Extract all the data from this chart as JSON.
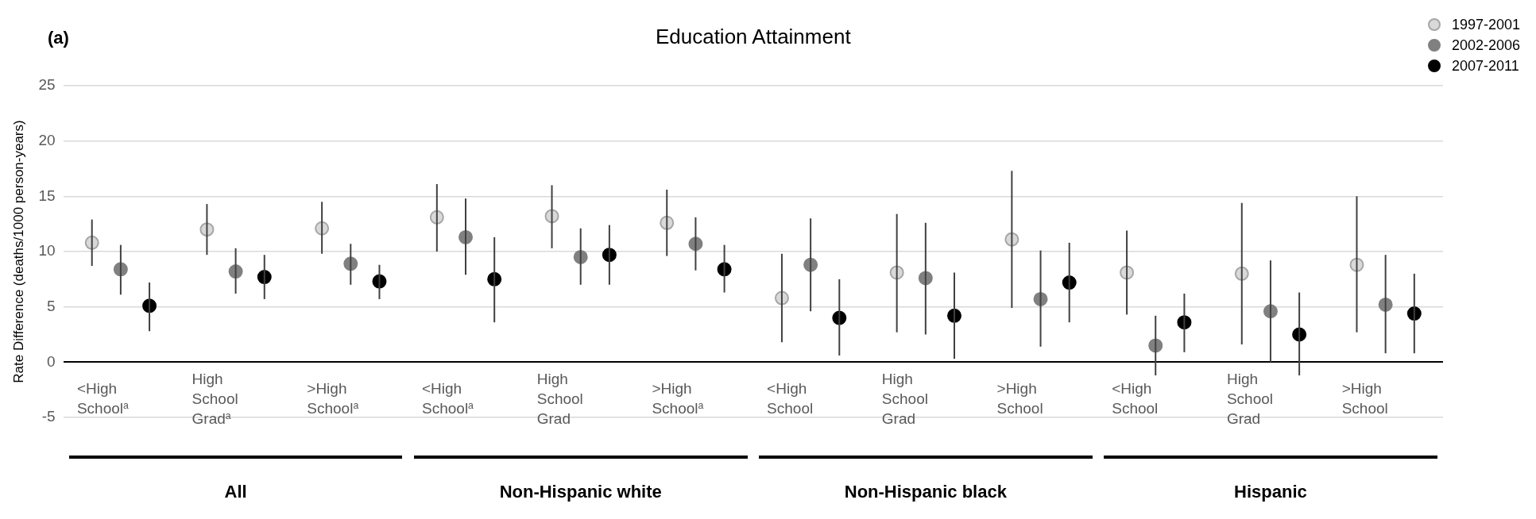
{
  "chart_data": {
    "type": "scatter",
    "title": "Education Attainment",
    "ylabel": "Rate Difference (deaths/1000 person-years)",
    "categories": [
      "<High School$^{a}$",
      "High School Grad$^{a}$",
      ">High School$^{a}$",
      "<High School$^{a}$",
      "High School Grad",
      ">High School$^{a}$",
      "<High School",
      "High School Grad",
      ">High School",
      "<High School",
      "High School Grad",
      ">High School"
    ],
    "series": [
      {
        "name": "1997-2001",
        "color": "#d9d9d9",
        "values": [
          10.8,
          12.0,
          12.1,
          13.1,
          13.2,
          12.6,
          5.8,
          8.1,
          11.1,
          8.1,
          8.0,
          8.8
        ],
        "errors": [
          [
            8.7,
            12.9
          ],
          [
            9.7,
            14.3
          ],
          [
            9.8,
            14.5
          ],
          [
            10.0,
            16.1
          ],
          [
            10.3,
            16.0
          ],
          [
            9.6,
            15.6
          ],
          [
            1.8,
            9.8
          ],
          [
            2.7,
            13.4
          ],
          [
            4.9,
            17.3
          ],
          [
            4.3,
            11.9
          ],
          [
            1.6,
            14.4
          ],
          [
            2.7,
            15.0
          ]
        ]
      },
      {
        "name": "2002-2006",
        "color": "#808080",
        "values": [
          8.4,
          8.2,
          8.9,
          11.3,
          9.5,
          10.7,
          8.8,
          7.6,
          5.7,
          1.5,
          4.6,
          5.2
        ],
        "errors": [
          [
            6.1,
            10.6
          ],
          [
            6.2,
            10.3
          ],
          [
            7.0,
            10.7
          ],
          [
            7.9,
            14.8
          ],
          [
            7.0,
            12.1
          ],
          [
            8.3,
            13.1
          ],
          [
            4.6,
            13.0
          ],
          [
            2.5,
            12.6
          ],
          [
            1.4,
            10.1
          ],
          [
            -1.2,
            4.2
          ],
          [
            0.0,
            9.2
          ],
          [
            0.8,
            9.7
          ]
        ]
      },
      {
        "name": "2007-2011",
        "color": "#000000",
        "values": [
          5.1,
          7.7,
          7.3,
          7.5,
          9.7,
          8.4,
          4.0,
          4.2,
          7.2,
          3.6,
          2.5,
          4.4
        ],
        "errors": [
          [
            2.8,
            7.2
          ],
          [
            5.7,
            9.7
          ],
          [
            5.7,
            8.8
          ],
          [
            3.6,
            11.3
          ],
          [
            7.0,
            12.4
          ],
          [
            6.3,
            10.6
          ],
          [
            0.6,
            7.5
          ],
          [
            0.3,
            8.1
          ],
          [
            3.6,
            10.8
          ],
          [
            0.9,
            6.2
          ],
          [
            -1.2,
            6.3
          ],
          [
            0.8,
            8.0
          ]
        ]
      }
    ],
    "ylim": [
      -5,
      25
    ],
    "yticks": [
      -5,
      0,
      5,
      10,
      15,
      20,
      25
    ],
    "grid": "y",
    "legend": "top right",
    "marker": "circle",
    "annotations": [
      "(a)",
      "All",
      "Non-Hispanic white",
      "Non-Hispanic black",
      "Hispanic"
    ]
  }
}
